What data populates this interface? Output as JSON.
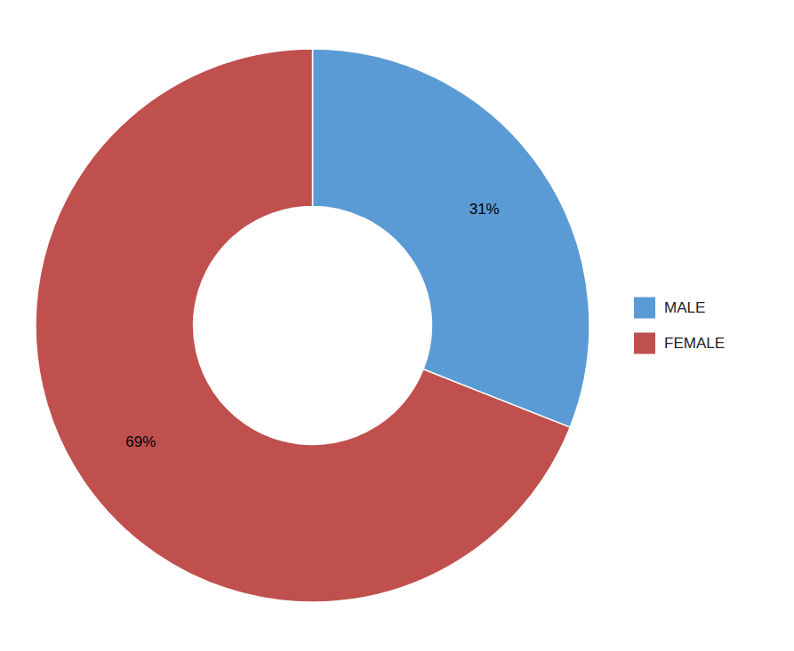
{
  "chart_data": {
    "type": "donut",
    "categories": [
      "MALE",
      "FEMALE"
    ],
    "values": [
      31,
      69
    ],
    "value_labels": [
      "31%",
      "69%"
    ],
    "colors": [
      "#5B9BD5",
      "#C0504D"
    ],
    "data_labels": true,
    "legend": "right"
  }
}
